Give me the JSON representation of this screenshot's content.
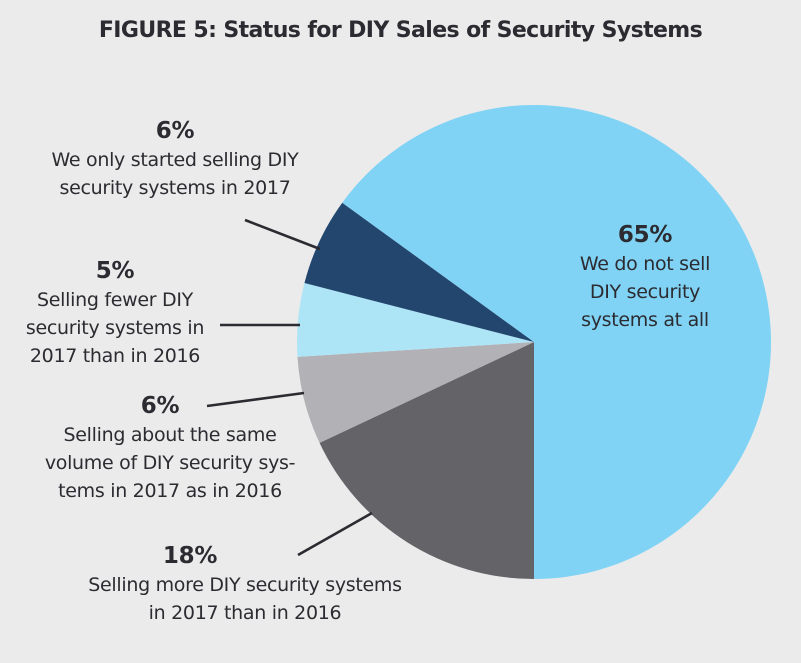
{
  "title": "FIGURE 5: Status for DIY Sales of Security Systems",
  "colors": {
    "background": "#ebebeb",
    "text": "#2b2b31",
    "leader": "#2b2b31"
  },
  "labels": [
    {
      "pct": "65%",
      "lines": [
        "We do not sell",
        "DIY security",
        "systems at all"
      ]
    },
    {
      "pct": "18%",
      "lines": [
        "Selling more DIY security systems",
        "in 2017 than in 2016"
      ]
    },
    {
      "pct": "6%",
      "lines": [
        "Selling about the same",
        "volume of DIY security sys-",
        "tems in 2017 as in 2016"
      ]
    },
    {
      "pct": "5%",
      "lines": [
        "Selling fewer DIY",
        "security systems in",
        "2017 than in 2016"
      ]
    },
    {
      "pct": "6%",
      "lines": [
        "We only started selling DIY",
        "security systems in 2017"
      ]
    }
  ],
  "chart_data": {
    "type": "pie",
    "title": "FIGURE 5: Status for DIY Sales of Security Systems",
    "categories": [
      "We do not sell DIY security systems at all",
      "Selling more DIY security systems in 2017 than in 2016",
      "Selling about the same volume of DIY security systems in 2017 as in 2016",
      "Selling fewer DIY security systems in 2017 than in 2016",
      "We only started selling DIY security systems in 2017"
    ],
    "values": [
      65,
      18,
      6,
      5,
      6
    ],
    "unit": "%",
    "colors": [
      "#80d3f4",
      "#636368",
      "#b2b1b5",
      "#ade4f6",
      "#23466f"
    ],
    "legend": "none (direct labels with leader lines)",
    "start_angle": "6 o'clock, 18% slice proceeding clockwise toward the left"
  }
}
